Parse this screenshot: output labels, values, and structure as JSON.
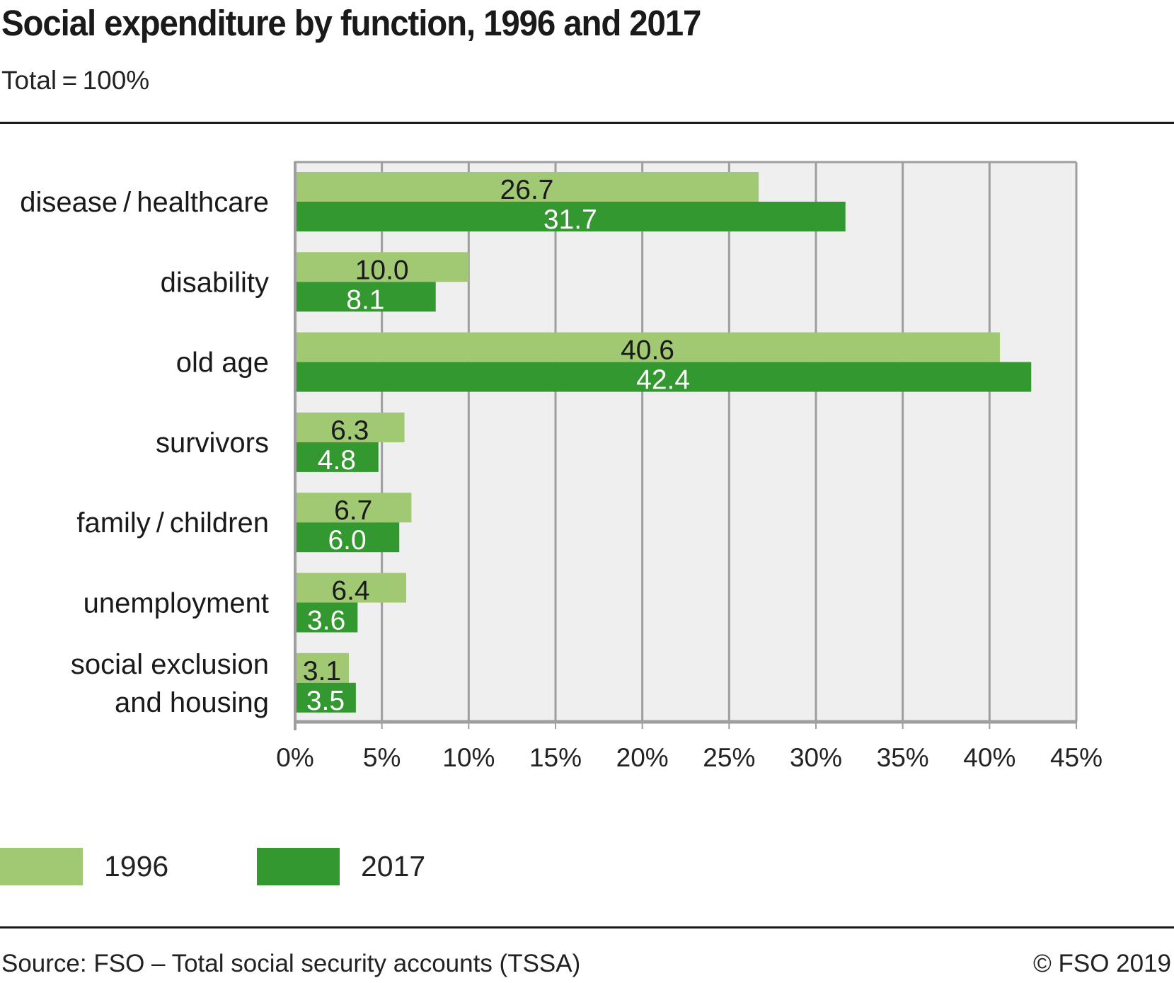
{
  "header": {
    "title": "Social expenditure by function, 1996 and 2017",
    "subtitle": "Total = 100%"
  },
  "footer": {
    "source": "Source: FSO – Total social security accounts (TSSA)",
    "copyright": "© FSO 2019"
  },
  "colors": {
    "series_1996": "#a1c973",
    "series_2017": "#339830",
    "plot_background": "#efefef",
    "grid": "#9e9e9e",
    "label_dark": "#1a1a1a",
    "label_light": "#ffffff"
  },
  "chart_data": {
    "type": "bar",
    "orientation": "horizontal",
    "title": "Social expenditure by function, 1996 and 2017",
    "subtitle": "Total = 100%",
    "xlabel": "",
    "ylabel": "",
    "xlim": [
      0,
      45
    ],
    "x_ticks": [
      0,
      5,
      10,
      15,
      20,
      25,
      30,
      35,
      40,
      45
    ],
    "x_tick_labels": [
      "0%",
      "5%",
      "10%",
      "15%",
      "20%",
      "25%",
      "30%",
      "35%",
      "40%",
      "45%"
    ],
    "grid": true,
    "legend_position": "bottom-left",
    "categories": [
      [
        "disease / healthcare"
      ],
      [
        "disability"
      ],
      [
        "old age"
      ],
      [
        "survivors"
      ],
      [
        "family / children"
      ],
      [
        "unemployment"
      ],
      [
        "social exclusion",
        "and housing"
      ]
    ],
    "series": [
      {
        "name": "1996",
        "values": [
          26.7,
          10.0,
          40.6,
          6.3,
          6.7,
          6.4,
          3.1
        ],
        "labels": [
          "26.7",
          "10.0",
          "40.6",
          "6.3",
          "6.7",
          "6.4",
          "3.1"
        ]
      },
      {
        "name": "2017",
        "values": [
          31.7,
          8.1,
          42.4,
          4.8,
          6.0,
          3.6,
          3.5
        ],
        "labels": [
          "31.7",
          "8.1",
          "42.4",
          "4.8",
          "6.0",
          "3.6",
          "3.5"
        ]
      }
    ]
  },
  "legend": {
    "items": [
      {
        "label": "1996"
      },
      {
        "label": "2017"
      }
    ]
  }
}
